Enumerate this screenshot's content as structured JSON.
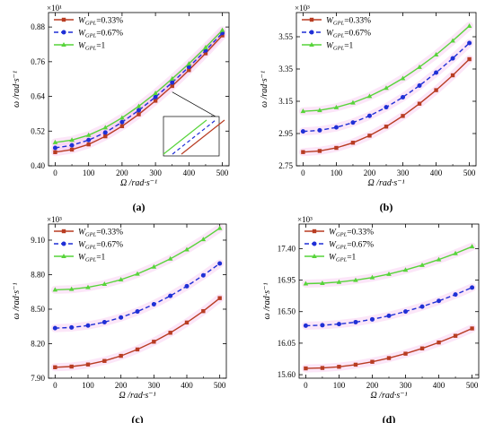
{
  "colors": {
    "s1": "#b83c22",
    "s2": "#1f2fd6",
    "s3": "#57d43a",
    "band": "#f5b6ea"
  },
  "legend_labels": [
    "W_GPL=0.33%",
    "W_GPL=0.67%",
    "W_GPL=1"
  ],
  "chart_data": [
    {
      "type": "line",
      "panel_label": "(a)",
      "multiplier": "×10¹",
      "xlabel": "Ω /rad·s⁻¹",
      "ylabel": "ω /rad·s⁻¹",
      "xlim": [
        -20,
        520
      ],
      "ylim": [
        0.4,
        0.93
      ],
      "xticks": [
        0,
        100,
        200,
        300,
        400,
        500
      ],
      "yticks": [
        0.4,
        0.52,
        0.64,
        0.76,
        0.88
      ],
      "ytick_labels": [
        "0.40",
        "0.52",
        "0.64",
        "0.76",
        "0.88"
      ],
      "x": [
        0,
        50,
        100,
        150,
        200,
        250,
        300,
        350,
        400,
        450,
        500
      ],
      "series": [
        {
          "name": "W_GPL=0.33%",
          "marker": "square",
          "dash": false,
          "values": [
            0.447,
            0.456,
            0.474,
            0.502,
            0.537,
            0.578,
            0.625,
            0.676,
            0.731,
            0.789,
            0.851
          ]
        },
        {
          "name": "W_GPL=0.67%",
          "marker": "circle",
          "dash": true,
          "values": [
            0.462,
            0.471,
            0.489,
            0.515,
            0.551,
            0.592,
            0.638,
            0.688,
            0.742,
            0.799,
            0.859
          ]
        },
        {
          "name": "W_GPL=1",
          "marker": "triangle",
          "dash": false,
          "values": [
            0.481,
            0.489,
            0.506,
            0.532,
            0.566,
            0.606,
            0.651,
            0.701,
            0.753,
            0.809,
            0.869
          ]
        }
      ]
    },
    {
      "type": "line",
      "panel_label": "(b)",
      "multiplier": "×10³",
      "xlabel": "Ω /rad·s⁻¹",
      "ylabel": "ω /rad·s⁻¹",
      "xlim": [
        -20,
        520
      ],
      "ylim": [
        2.75,
        3.7
      ],
      "xticks": [
        0,
        100,
        200,
        300,
        400,
        500
      ],
      "yticks": [
        2.75,
        2.95,
        3.15,
        3.35,
        3.55
      ],
      "ytick_labels": [
        "2.75",
        "2.95",
        "3.15",
        "3.35",
        "3.55"
      ],
      "x": [
        0,
        50,
        100,
        150,
        200,
        250,
        300,
        350,
        400,
        450,
        500
      ],
      "series": [
        {
          "name": "W_GPL=0.33%",
          "marker": "square",
          "dash": false,
          "values": [
            2.835,
            2.842,
            2.861,
            2.893,
            2.937,
            2.993,
            3.059,
            3.135,
            3.219,
            3.311,
            3.411
          ]
        },
        {
          "name": "W_GPL=0.67%",
          "marker": "circle",
          "dash": true,
          "values": [
            2.963,
            2.97,
            2.988,
            3.018,
            3.06,
            3.113,
            3.175,
            3.247,
            3.328,
            3.416,
            3.511
          ]
        },
        {
          "name": "W_GPL=1",
          "marker": "triangle",
          "dash": false,
          "values": [
            3.088,
            3.094,
            3.112,
            3.141,
            3.181,
            3.232,
            3.292,
            3.362,
            3.439,
            3.525,
            3.617
          ]
        }
      ]
    },
    {
      "type": "line",
      "panel_label": "(c)",
      "multiplier": "×10³",
      "xlabel": "Ω /rad·s⁻¹",
      "ylabel": "ω /rad·s⁻¹",
      "xlim": [
        -20,
        520
      ],
      "ylim": [
        7.9,
        9.24
      ],
      "xticks": [
        0,
        100,
        200,
        300,
        400,
        500
      ],
      "yticks": [
        7.9,
        8.2,
        8.5,
        8.8,
        9.1
      ],
      "ytick_labels": [
        "7.90",
        "8.20",
        "8.50",
        "8.80",
        "9.10"
      ],
      "x": [
        0,
        50,
        100,
        150,
        200,
        250,
        300,
        350,
        400,
        450,
        500
      ],
      "series": [
        {
          "name": "W_GPL=0.33%",
          "marker": "square",
          "dash": false,
          "values": [
            7.995,
            8.001,
            8.019,
            8.05,
            8.094,
            8.15,
            8.217,
            8.295,
            8.384,
            8.483,
            8.596
          ]
        },
        {
          "name": "W_GPL=0.67%",
          "marker": "circle",
          "dash": true,
          "values": [
            8.335,
            8.341,
            8.358,
            8.387,
            8.428,
            8.48,
            8.543,
            8.616,
            8.7,
            8.794,
            8.897
          ]
        },
        {
          "name": "W_GPL=1",
          "marker": "triangle",
          "dash": false,
          "values": [
            8.668,
            8.674,
            8.69,
            8.718,
            8.757,
            8.807,
            8.868,
            8.938,
            9.018,
            9.107,
            9.204
          ]
        }
      ]
    },
    {
      "type": "line",
      "panel_label": "(d)",
      "multiplier": "×10³",
      "xlabel": "Ω /rad·s⁻¹",
      "ylabel": "ω /rad·s⁻¹",
      "xlim": [
        -20,
        520
      ],
      "ylim": [
        15.55,
        17.75
      ],
      "xticks": [
        0,
        100,
        200,
        300,
        400,
        500
      ],
      "yticks": [
        15.6,
        16.05,
        16.5,
        16.95,
        17.4
      ],
      "ytick_labels": [
        "15.60",
        "16.05",
        "16.50",
        "16.95",
        "17.40"
      ],
      "x": [
        0,
        50,
        100,
        150,
        200,
        250,
        300,
        350,
        400,
        450,
        500
      ],
      "series": [
        {
          "name": "W_GPL=0.33%",
          "marker": "square",
          "dash": false,
          "values": [
            15.69,
            15.696,
            15.713,
            15.743,
            15.784,
            15.837,
            15.9,
            15.975,
            16.06,
            16.155,
            16.26
          ]
        },
        {
          "name": "W_GPL=0.67%",
          "marker": "circle",
          "dash": true,
          "values": [
            16.3,
            16.306,
            16.322,
            16.35,
            16.39,
            16.44,
            16.501,
            16.572,
            16.653,
            16.744,
            16.844
          ]
        },
        {
          "name": "W_GPL=1",
          "marker": "triangle",
          "dash": false,
          "values": [
            16.9,
            16.906,
            16.922,
            16.949,
            16.987,
            17.036,
            17.095,
            17.164,
            17.243,
            17.331,
            17.428
          ]
        }
      ]
    }
  ]
}
